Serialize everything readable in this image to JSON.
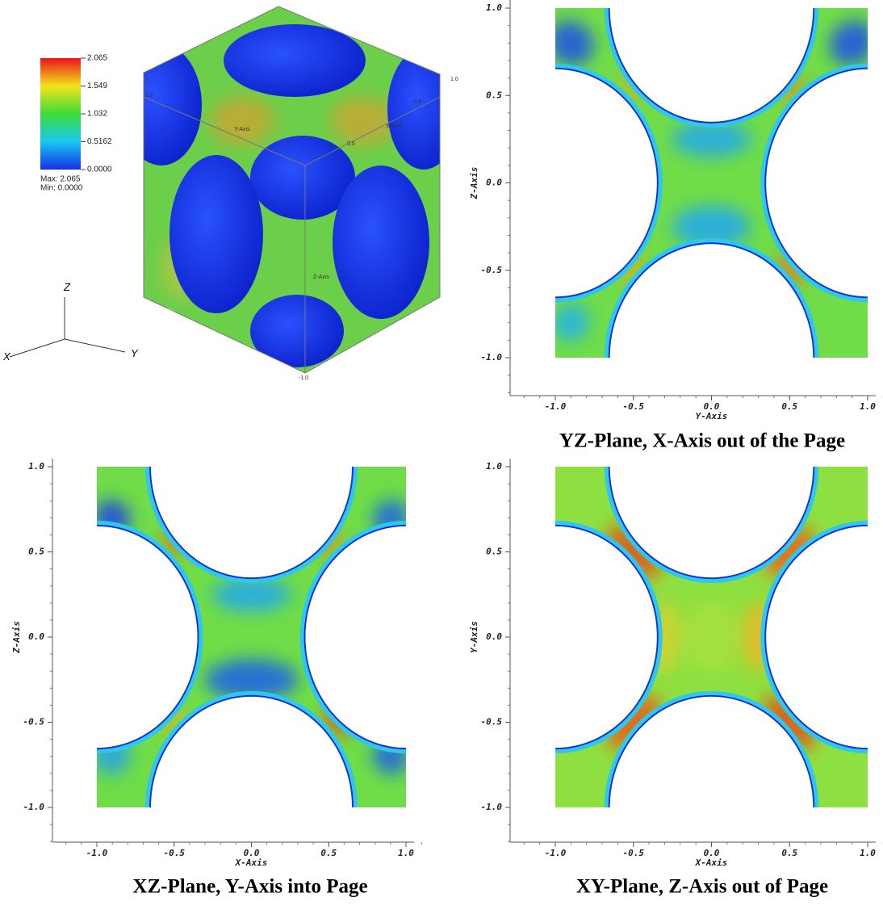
{
  "colorbar": {
    "ticks": [
      "2.065",
      "1.549",
      "1.032",
      "0.5162",
      "0.0000"
    ],
    "max": "Max: 2.065",
    "min": "Min: 0.0000"
  },
  "triad": {
    "z": "Z",
    "x": "X",
    "y": "Y"
  },
  "cube": {
    "axis_labels": [
      "Y-Axis",
      "X-Axis",
      "Z-Axis"
    ],
    "ticks": [
      "1.0",
      "1.0",
      "-0.5",
      "0.5",
      "-1.0"
    ]
  },
  "panels": [
    {
      "caption": "YZ-Plane, X-Axis out of the Page",
      "x_label": "Y-Axis",
      "y_label": "Z-Axis",
      "x_ticks": [
        "-1.0",
        "-0.5",
        "0.0",
        "0.5",
        "1.0"
      ],
      "y_ticks": [
        "1.0",
        "0.5",
        "0.0",
        "-0.5",
        "-1.0"
      ]
    },
    {
      "caption": "XZ-Plane, Y-Axis into Page",
      "x_label": "X-Axis",
      "y_label": "Z-Axis",
      "x_ticks": [
        "-1.0",
        "-0.5",
        "0.0",
        "0.5",
        "1.0"
      ],
      "y_ticks": [
        "1.0",
        "0.5",
        "0.0",
        "-0.5",
        "-1.0"
      ]
    },
    {
      "caption": "XY-Plane, Z-Axis out of Page",
      "x_label": "X-Axis",
      "y_label": "Y-Axis",
      "x_ticks": [
        "-1.0",
        "-0.5",
        "0.0",
        "0.5",
        "1.0"
      ],
      "y_ticks": [
        "1.0",
        "0.5",
        "0.0",
        "-0.5",
        "-1.0"
      ]
    }
  ]
}
